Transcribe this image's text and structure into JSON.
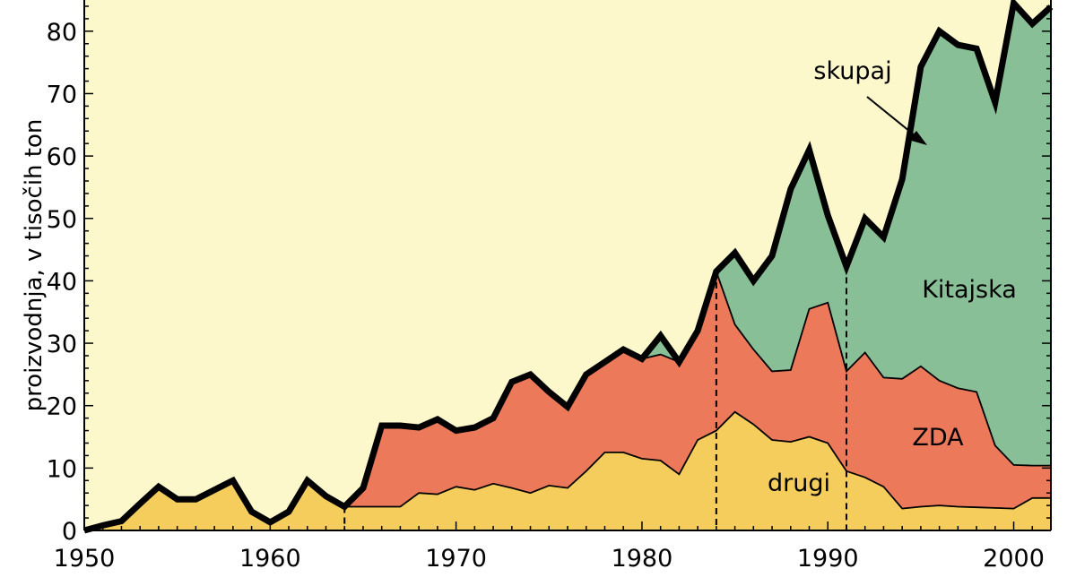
{
  "chart_data": {
    "type": "area",
    "ylabel": "proizvodnja, v tisočih ton",
    "xlabel": "",
    "xlim": [
      1950,
      2002
    ],
    "ylim": [
      0,
      85
    ],
    "x_ticks": [
      1950,
      1960,
      1970,
      1980,
      1990,
      2000
    ],
    "y_ticks": [
      0,
      10,
      20,
      30,
      40,
      50,
      60,
      70,
      80
    ],
    "x": [
      1950,
      1951,
      1952,
      1953,
      1954,
      1955,
      1956,
      1957,
      1958,
      1959,
      1960,
      1961,
      1962,
      1963,
      1964,
      1965,
      1966,
      1967,
      1968,
      1969,
      1970,
      1971,
      1972,
      1973,
      1974,
      1975,
      1976,
      1977,
      1978,
      1979,
      1980,
      1981,
      1982,
      1983,
      1984,
      1985,
      1986,
      1987,
      1988,
      1989,
      1990,
      1991,
      1992,
      1993,
      1994,
      1995,
      1996,
      1997,
      1998,
      1999,
      2000,
      2001,
      2002
    ],
    "series": [
      {
        "name": "drugi",
        "color": "#f5cd5c",
        "values": [
          0,
          0.8,
          1.5,
          4.3,
          7,
          5,
          5,
          6.5,
          8,
          3,
          1.3,
          3,
          8,
          5.5,
          3.8,
          3.8,
          3.8,
          3.8,
          6,
          5.8,
          7,
          6.5,
          7.5,
          6.8,
          6,
          7.2,
          6.8,
          9.5,
          12.5,
          12.5,
          11.5,
          11.2,
          9,
          14.5,
          16,
          19,
          17,
          14.5,
          14.2,
          15,
          14,
          9.5,
          8.5,
          7,
          3.5,
          3.8,
          4,
          3.8,
          3.7,
          3.6,
          3.5,
          5.2,
          5.2
        ]
      },
      {
        "name": "ZDA",
        "color": "#ec7a5a",
        "values": [
          0,
          0,
          0,
          0,
          0,
          0,
          0,
          0,
          0,
          0,
          0,
          0,
          0,
          0,
          0,
          3,
          13,
          13,
          10.5,
          12,
          9,
          10,
          10.5,
          17,
          19,
          15,
          13,
          15.5,
          14.5,
          16.5,
          16,
          17,
          18,
          17.5,
          25.5,
          14,
          12,
          11,
          11.5,
          20.5,
          22.5,
          16,
          20,
          17.5,
          20.8,
          22.5,
          20,
          19,
          18.5,
          10,
          7,
          5.2,
          5.2
        ]
      },
      {
        "name": "Kitajska",
        "color": "#88bf96",
        "values": [
          0,
          0,
          0,
          0,
          0,
          0,
          0,
          0,
          0,
          0,
          0,
          0,
          0,
          0,
          0,
          0,
          0,
          0,
          0,
          0,
          0,
          0,
          0,
          0,
          0,
          0,
          0,
          0,
          0,
          0,
          0,
          3,
          0,
          0,
          0,
          11.5,
          11,
          18.5,
          29,
          25.5,
          14,
          16.8,
          21.5,
          22.5,
          32,
          48,
          56,
          55,
          55,
          55,
          74,
          70.8,
          73.5
        ]
      }
    ],
    "total_label": "skupaj",
    "dashed_years": [
      1964,
      1984,
      1991
    ]
  }
}
